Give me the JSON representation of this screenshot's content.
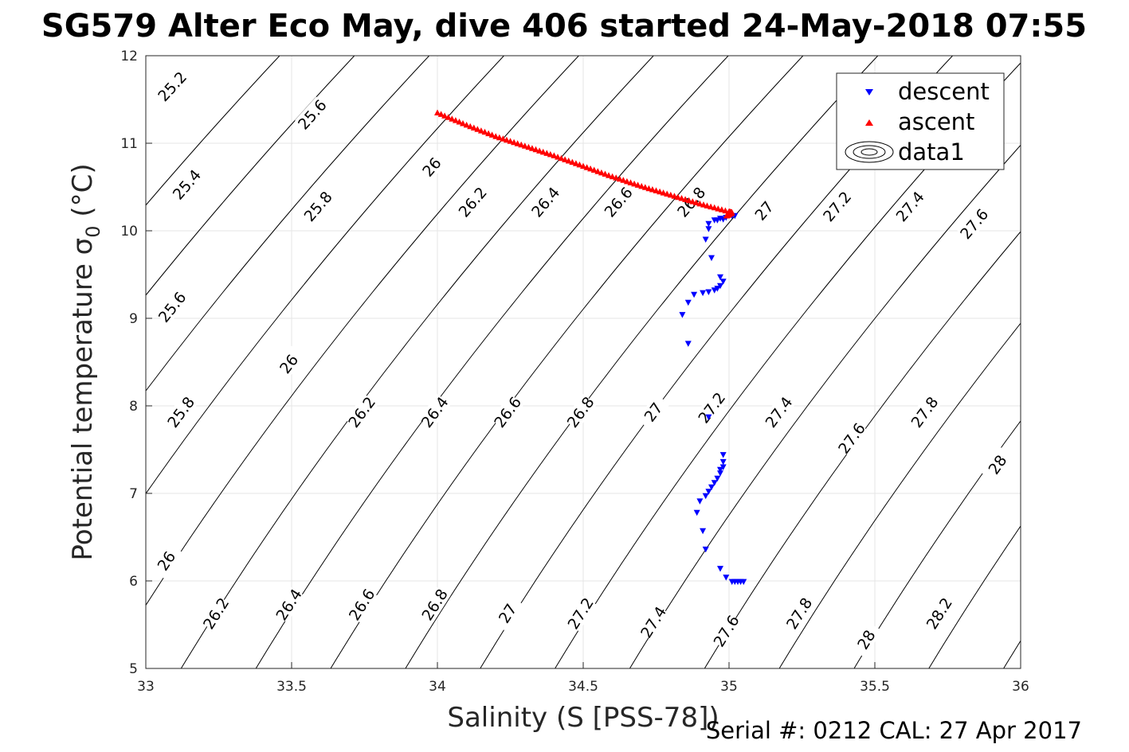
{
  "chart_data": {
    "type": "scatter",
    "title": "SG579 Alter Eco May, dive 406 started 24-May-2018 07:55",
    "xlabel": "Salinity (S [PSS-78])",
    "ylabel": "Potential temperature σ0 (°C)",
    "xlim": [
      33,
      36
    ],
    "ylim": [
      5,
      12
    ],
    "xticks": [
      "33",
      "33.5",
      "34",
      "34.5",
      "35",
      "35.5",
      "36"
    ],
    "yticks": [
      "5",
      "6",
      "7",
      "8",
      "9",
      "10",
      "11",
      "12"
    ],
    "grid": true,
    "legend_position": "top-right",
    "legend": [
      "descent",
      "ascent",
      "data1"
    ],
    "colors": {
      "descent": "#0000ff",
      "ascent": "#ff0000",
      "contour": "#000000",
      "grid": "#e6e6e6"
    },
    "contour_levels": [
      25.0,
      25.2,
      25.4,
      25.6,
      25.8,
      26.0,
      26.2,
      26.4,
      26.6,
      26.8,
      27.0,
      27.2,
      27.4,
      27.6,
      27.8,
      28.0,
      28.2,
      28.4
    ],
    "contour_labels": [
      {
        "text": "25.2",
        "s": 33.09,
        "t": 11.65
      },
      {
        "text": "25.6",
        "s": 33.57,
        "t": 11.33
      },
      {
        "text": "26",
        "s": 33.98,
        "t": 10.73
      },
      {
        "text": "25.4",
        "s": 33.14,
        "t": 10.53
      },
      {
        "text": "25.8",
        "s": 33.59,
        "t": 10.28
      },
      {
        "text": "26.2",
        "s": 34.12,
        "t": 10.33
      },
      {
        "text": "26.4",
        "s": 34.37,
        "t": 10.33
      },
      {
        "text": "26.6",
        "s": 34.62,
        "t": 10.33
      },
      {
        "text": "26.8",
        "s": 34.87,
        "t": 10.33
      },
      {
        "text": "27",
        "s": 35.12,
        "t": 10.23
      },
      {
        "text": "27.2",
        "s": 35.37,
        "t": 10.28
      },
      {
        "text": "27.4",
        "s": 35.62,
        "t": 10.28
      },
      {
        "text": "27.6",
        "s": 35.84,
        "t": 10.08
      },
      {
        "text": "25.6",
        "s": 33.09,
        "t": 9.13
      },
      {
        "text": "26",
        "s": 33.49,
        "t": 8.48
      },
      {
        "text": "26.2",
        "s": 33.74,
        "t": 7.93
      },
      {
        "text": "26.4",
        "s": 33.99,
        "t": 7.93
      },
      {
        "text": "26.6",
        "s": 34.24,
        "t": 7.93
      },
      {
        "text": "26.8",
        "s": 34.49,
        "t": 7.93
      },
      {
        "text": "27",
        "s": 34.74,
        "t": 7.93
      },
      {
        "text": "27.2",
        "s": 34.94,
        "t": 7.98
      },
      {
        "text": "27.4",
        "s": 35.17,
        "t": 7.93
      },
      {
        "text": "27.6",
        "s": 35.42,
        "t": 7.63
      },
      {
        "text": "27.8",
        "s": 35.67,
        "t": 7.93
      },
      {
        "text": "28",
        "s": 35.92,
        "t": 7.33
      },
      {
        "text": "25.8",
        "s": 33.12,
        "t": 7.93
      },
      {
        "text": "26",
        "s": 33.07,
        "t": 6.23
      },
      {
        "text": "26.2",
        "s": 33.24,
        "t": 5.63
      },
      {
        "text": "26.4",
        "s": 33.49,
        "t": 5.73
      },
      {
        "text": "26.6",
        "s": 33.74,
        "t": 5.73
      },
      {
        "text": "26.8",
        "s": 33.99,
        "t": 5.73
      },
      {
        "text": "27",
        "s": 34.24,
        "t": 5.63
      },
      {
        "text": "27.2",
        "s": 34.49,
        "t": 5.63
      },
      {
        "text": "27.4",
        "s": 34.74,
        "t": 5.53
      },
      {
        "text": "27.6",
        "s": 34.99,
        "t": 5.43
      },
      {
        "text": "27.8",
        "s": 35.24,
        "t": 5.63
      },
      {
        "text": "28",
        "s": 35.47,
        "t": 5.33
      },
      {
        "text": "28.2",
        "s": 35.72,
        "t": 5.63
      }
    ],
    "series": [
      {
        "name": "descent",
        "marker": "triangle-down",
        "points": [
          [
            34.93,
            10.08
          ],
          [
            34.95,
            10.12
          ],
          [
            34.97,
            10.14
          ],
          [
            34.99,
            10.15
          ],
          [
            35.01,
            10.17
          ],
          [
            35.02,
            10.17
          ],
          [
            34.98,
            10.13
          ],
          [
            34.96,
            10.12
          ],
          [
            34.93,
            10.02
          ],
          [
            34.92,
            9.9
          ],
          [
            34.94,
            9.69
          ],
          [
            34.97,
            9.47
          ],
          [
            34.98,
            9.42
          ],
          [
            34.97,
            9.37
          ],
          [
            34.96,
            9.34
          ],
          [
            34.95,
            9.32
          ],
          [
            34.93,
            9.3
          ],
          [
            34.91,
            9.29
          ],
          [
            34.88,
            9.27
          ],
          [
            34.86,
            9.18
          ],
          [
            34.84,
            9.04
          ],
          [
            34.86,
            8.71
          ],
          [
            34.93,
            7.87
          ],
          [
            34.98,
            7.44
          ],
          [
            34.98,
            7.36
          ],
          [
            34.98,
            7.3
          ],
          [
            34.97,
            7.27
          ],
          [
            34.97,
            7.23
          ],
          [
            34.96,
            7.17
          ],
          [
            34.95,
            7.12
          ],
          [
            34.94,
            7.07
          ],
          [
            34.93,
            7.02
          ],
          [
            34.92,
            6.97
          ],
          [
            34.9,
            6.91
          ],
          [
            34.89,
            6.78
          ],
          [
            34.91,
            6.57
          ],
          [
            34.92,
            6.36
          ],
          [
            34.97,
            6.14
          ],
          [
            34.99,
            6.04
          ],
          [
            35.01,
            5.99
          ],
          [
            35.02,
            5.99
          ],
          [
            35.03,
            5.99
          ],
          [
            35.04,
            5.99
          ],
          [
            35.05,
            5.99
          ]
        ]
      },
      {
        "name": "ascent",
        "marker": "triangle-up",
        "points": [
          [
            34.0,
            11.35
          ],
          [
            34.1,
            11.21
          ],
          [
            34.2,
            11.08
          ],
          [
            34.3,
            10.97
          ],
          [
            34.4,
            10.86
          ],
          [
            34.5,
            10.74
          ],
          [
            34.6,
            10.62
          ],
          [
            34.7,
            10.51
          ],
          [
            34.8,
            10.41
          ],
          [
            34.9,
            10.31
          ],
          [
            35.0,
            10.22
          ],
          [
            35.01,
            10.21
          ],
          [
            35.0,
            10.19
          ],
          [
            34.99,
            10.17
          ]
        ]
      },
      {
        "name": "data1",
        "marker": "contour"
      }
    ],
    "footer": "Serial #: 0212  CAL: 27 Apr 2017"
  }
}
